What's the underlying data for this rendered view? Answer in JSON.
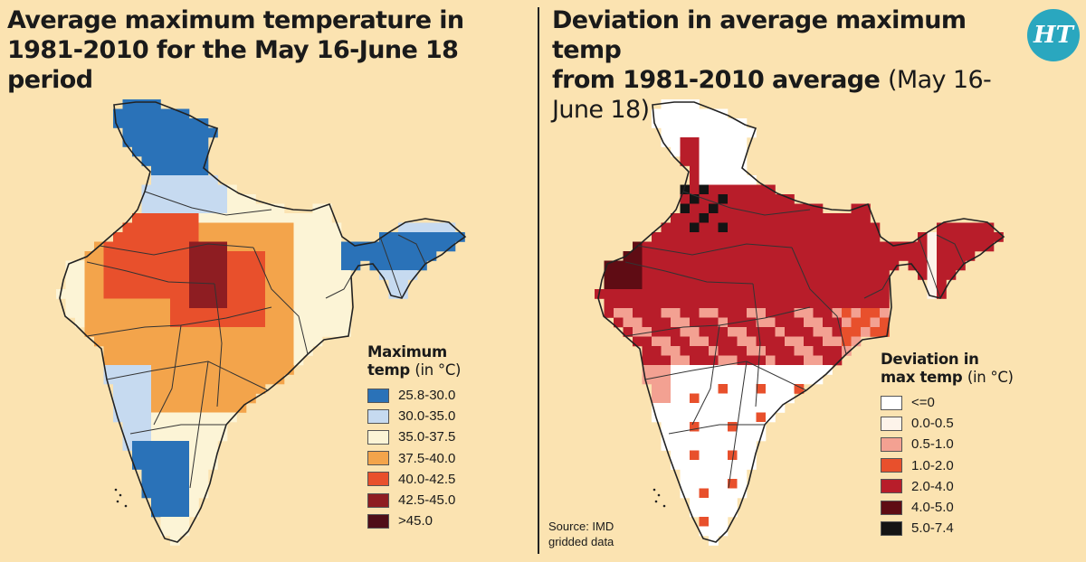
{
  "left_panel": {
    "title_line1": "Average maximum temperature in",
    "title_line2": "1981-2010 for the May 16-June 18 period",
    "legend": {
      "title": "Maximum",
      "title_line2": "temp",
      "unit": "(in °C)",
      "items": [
        {
          "label": "25.8-30.0",
          "color": "#2a72b8"
        },
        {
          "label": "30.0-35.0",
          "color": "#c6daf0"
        },
        {
          "label": "35.0-37.5",
          "color": "#fcf4d6"
        },
        {
          "label": "37.5-40.0",
          "color": "#f3a44b"
        },
        {
          "label": "40.0-42.5",
          "color": "#e8502c"
        },
        {
          "label": "42.5-45.0",
          "color": "#8e1d22"
        },
        {
          "label": ">45.0",
          "color": "#4f0e18"
        }
      ]
    }
  },
  "right_panel": {
    "title_line1": "Deviation in average maximum temp",
    "title_line2": "from 1981-2010 average",
    "title_paren": "(May 16-June 18)",
    "legend": {
      "title": "Deviation in",
      "title_line2": "max temp",
      "unit": "(in °C)",
      "items": [
        {
          "label": "<=0",
          "color": "#ffffff"
        },
        {
          "label": "0.0-0.5",
          "color": "#fdf3ea"
        },
        {
          "label": "0.5-1.0",
          "color": "#f3a192"
        },
        {
          "label": "1.0-2.0",
          "color": "#e8502c"
        },
        {
          "label": "2.0-4.0",
          "color": "#b81d2a"
        },
        {
          "label": "4.0-5.0",
          "color": "#5f0c14"
        },
        {
          "label": "5.0-7.4",
          "color": "#141414"
        }
      ]
    }
  },
  "source": {
    "line1": "Source: IMD",
    "line2": "gridded data"
  },
  "logo": {
    "text": "HT",
    "color": "#2aa7bf"
  }
}
